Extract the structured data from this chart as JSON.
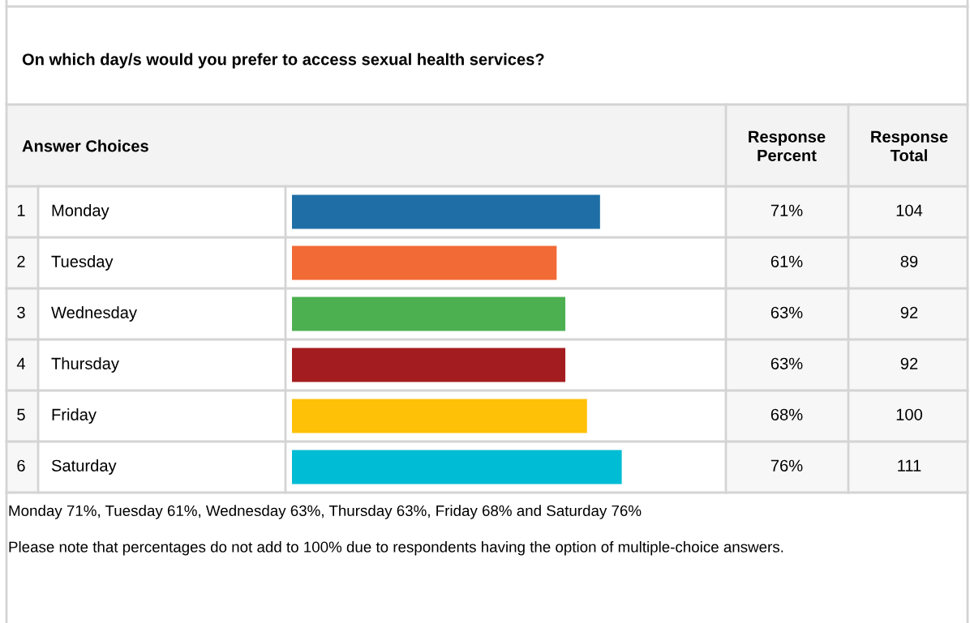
{
  "chart_data": {
    "type": "bar",
    "orientation": "horizontal",
    "title": "On which day/s would you prefer to access sexual health services?",
    "categories": [
      "Monday",
      "Tuesday",
      "Wednesday",
      "Thursday",
      "Friday",
      "Saturday"
    ],
    "values": [
      71,
      61,
      63,
      63,
      68,
      76
    ],
    "colors": [
      "#1f6fa6",
      "#f26a35",
      "#4cb050",
      "#a31c1f",
      "#ffc107",
      "#00bcd4"
    ],
    "value_labels": [
      "71%",
      "61%",
      "63%",
      "63%",
      "68%",
      "76%"
    ],
    "xlim": [
      0,
      100
    ],
    "annotations": [
      "Answer Choices",
      "Response\nPercent",
      "Response\nTotal",
      "1",
      "2",
      "3",
      "4",
      "5",
      "6",
      "104",
      "89",
      "92",
      "92",
      "100",
      "111",
      "Monday 71%, Tuesday 61%, Wednesday 63%, Thursday 63%, Friday 68% and Saturday 76%",
      "Please note that percentages do not add to 100% due to respondents having the option of multiple-choice answers."
    ]
  }
}
